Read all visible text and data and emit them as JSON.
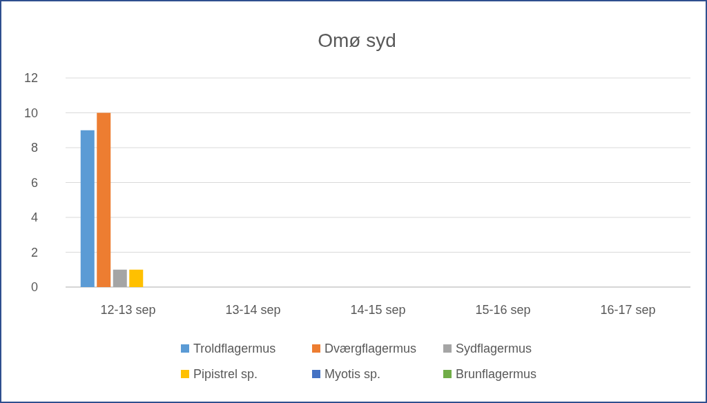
{
  "chart_data": {
    "type": "bar",
    "title": "Omø syd",
    "categories": [
      "12-13 sep",
      "13-14 sep",
      "14-15 sep",
      "15-16 sep",
      "16-17 sep"
    ],
    "series": [
      {
        "name": "Troldflagermus",
        "color": "#5b9bd5",
        "values": [
          9,
          0,
          0,
          0,
          0
        ]
      },
      {
        "name": "Dværgflagermus",
        "color": "#ed7d31",
        "values": [
          10,
          0,
          0,
          0,
          0
        ]
      },
      {
        "name": "Sydflagermus",
        "color": "#a5a5a5",
        "values": [
          1,
          0,
          0,
          0,
          0
        ]
      },
      {
        "name": "Pipistrel sp.",
        "color": "#ffc000",
        "values": [
          1,
          0,
          0,
          0,
          0
        ]
      },
      {
        "name": "Myotis sp.",
        "color": "#4472c4",
        "values": [
          0,
          0,
          0,
          0,
          0
        ]
      },
      {
        "name": "Brunflagermus",
        "color": "#70ad47",
        "values": [
          0,
          0,
          0,
          0,
          0
        ]
      }
    ],
    "ylim": [
      0,
      12
    ],
    "yticks": [
      0,
      2,
      4,
      6,
      8,
      10,
      12
    ],
    "grid": "y",
    "legend": "bottom"
  }
}
